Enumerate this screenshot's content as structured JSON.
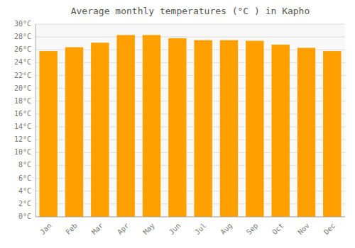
{
  "chart_data": {
    "type": "bar",
    "title": "Average monthly temperatures (°C ) in Kapho",
    "categories": [
      "Jan",
      "Feb",
      "Mar",
      "Apr",
      "May",
      "Jun",
      "Jul",
      "Aug",
      "Sep",
      "Oct",
      "Nov",
      "Dec"
    ],
    "values": [
      25.8,
      26.4,
      27.1,
      28.3,
      28.3,
      27.8,
      27.5,
      27.5,
      27.4,
      26.8,
      26.3,
      25.8
    ],
    "color": "#FFA000",
    "ylim": [
      0,
      30
    ],
    "yticks": [
      {
        "value": 0,
        "label": "0°C"
      },
      {
        "value": 2,
        "label": "2°C"
      },
      {
        "value": 4,
        "label": "4°C"
      },
      {
        "value": 6,
        "label": "6°C"
      },
      {
        "value": 8,
        "label": "8°C"
      },
      {
        "value": 10,
        "label": "10°C"
      },
      {
        "value": 12,
        "label": "12°C"
      },
      {
        "value": 14,
        "label": "14°C"
      },
      {
        "value": 16,
        "label": "16°C"
      },
      {
        "value": 18,
        "label": "18°C"
      },
      {
        "value": 20,
        "label": "20°C"
      },
      {
        "value": 22,
        "label": "22°C"
      },
      {
        "value": 24,
        "label": "24°C"
      },
      {
        "value": 26,
        "label": "26°C"
      },
      {
        "value": 28,
        "label": "28°C"
      },
      {
        "value": 30,
        "label": "30°C"
      }
    ],
    "grid": true
  }
}
